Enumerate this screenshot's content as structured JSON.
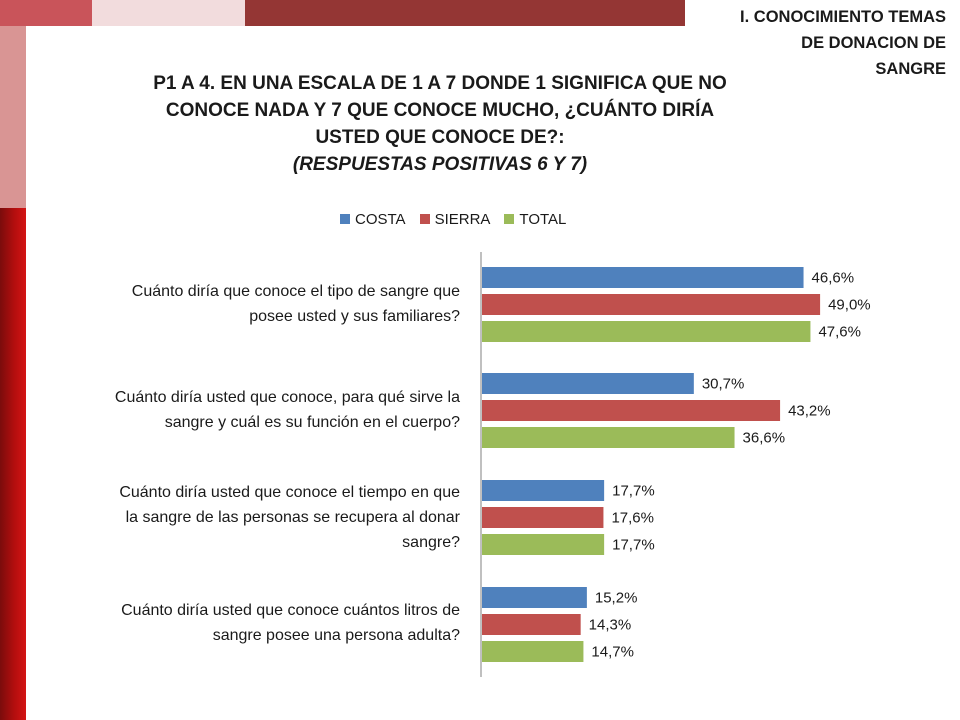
{
  "section_title_lines": [
    "I. CONOCIMIENTO TEMAS",
    "DE DONACION DE",
    "SANGRE"
  ],
  "title_lines": [
    "P1 A 4. EN UNA ESCALA DE 1 A 7 DONDE 1 SIGNIFICA QUE NO",
    "CONOCE NADA Y 7 QUE CONOCE MUCHO, ¿CUÁNTO DIRÍA",
    "USTED QUE CONOCE DE?:",
    "(RESPUESTAS POSITIVAS 6 Y 7)"
  ],
  "colors": {
    "costa": "#4f81bd",
    "sierra": "#c0504d",
    "total": "#9bbb59",
    "axis": "#808080"
  },
  "chart_data": {
    "type": "bar",
    "orientation": "horizontal",
    "categories": [
      [
        "Cuánto diría que conoce el tipo de sangre que",
        "posee usted y sus familiares?"
      ],
      [
        "Cuánto diría usted que conoce, para qué sirve la",
        "sangre y cuál es su función en el cuerpo?"
      ],
      [
        "Cuánto diría usted que conoce el tiempo en que",
        "la sangre de las personas se recupera al donar",
        "sangre?"
      ],
      [
        "Cuánto diría usted que conoce cuántos litros de",
        "sangre posee una persona adulta?"
      ]
    ],
    "series": [
      {
        "name": "COSTA",
        "values": [
          46.6,
          30.7,
          17.7,
          15.2
        ],
        "labels": [
          "46,6%",
          "30,7%",
          "17,7%",
          "15,2%"
        ]
      },
      {
        "name": "SIERRA",
        "values": [
          49.0,
          43.2,
          17.6,
          14.3
        ],
        "labels": [
          "49,0%",
          "43,2%",
          "17,6%",
          "14,3%"
        ]
      },
      {
        "name": "TOTAL",
        "values": [
          47.6,
          36.6,
          17.7,
          14.7
        ],
        "labels": [
          "47,6%",
          "36,6%",
          "17,7%",
          "14,7%"
        ]
      }
    ],
    "xlim": [
      0,
      50
    ],
    "legend_position": "top",
    "grid": false
  }
}
